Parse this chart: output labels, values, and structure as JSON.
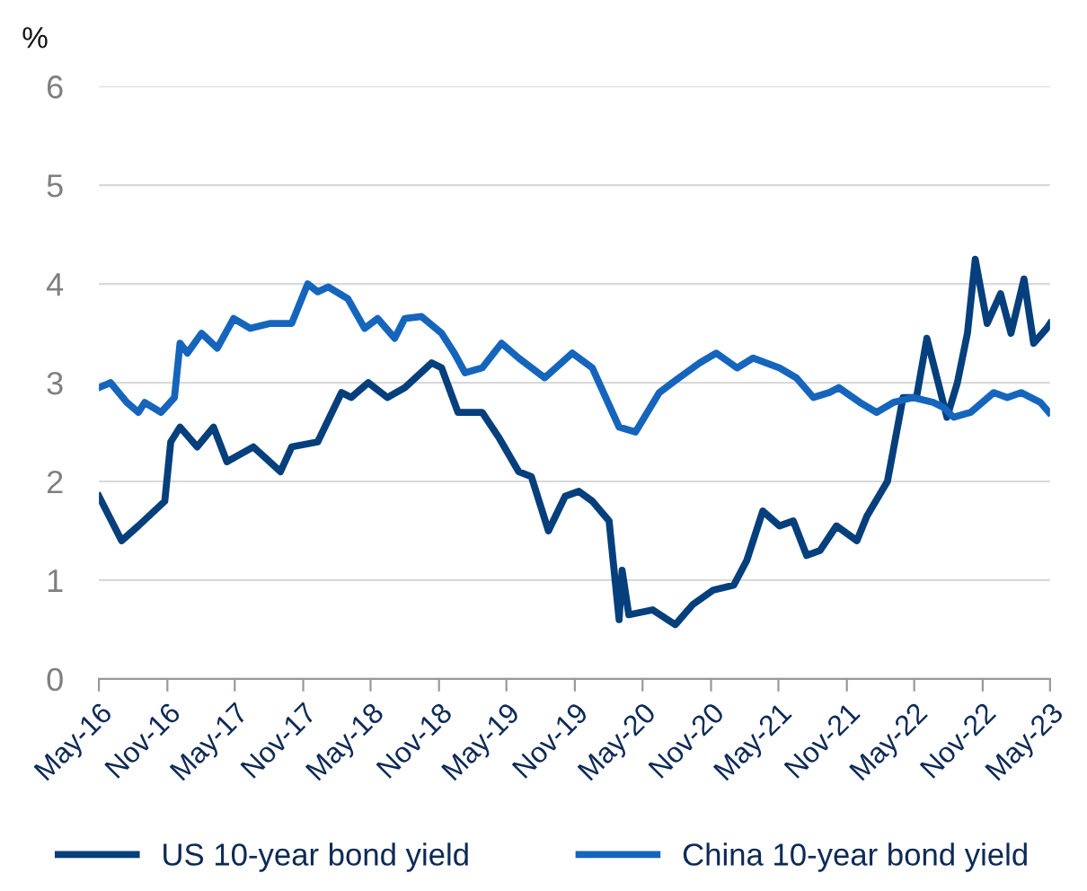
{
  "chart_data": {
    "type": "line",
    "ylabel": "%",
    "ylim": [
      0,
      6
    ],
    "yticks": [
      0,
      1,
      2,
      3,
      4,
      5,
      6
    ],
    "grid": "y",
    "legend": "bottom",
    "line_style": "solid",
    "xlim": [
      "2016-05-01",
      "2023-05-01"
    ],
    "xticks": [
      {
        "value": "2016-05-01",
        "label": "May-16"
      },
      {
        "value": "2016-11-01",
        "label": "Nov-16"
      },
      {
        "value": "2017-05-01",
        "label": "May-17"
      },
      {
        "value": "2017-11-01",
        "label": "Nov-17"
      },
      {
        "value": "2018-05-01",
        "label": "May-18"
      },
      {
        "value": "2018-11-01",
        "label": "Nov-18"
      },
      {
        "value": "2019-05-01",
        "label": "May-19"
      },
      {
        "value": "2019-11-01",
        "label": "Nov-19"
      },
      {
        "value": "2020-05-01",
        "label": "May-20"
      },
      {
        "value": "2020-11-01",
        "label": "Nov-20"
      },
      {
        "value": "2021-05-01",
        "label": "May-21"
      },
      {
        "value": "2021-11-01",
        "label": "Nov-21"
      },
      {
        "value": "2022-05-01",
        "label": "May-22"
      },
      {
        "value": "2022-11-01",
        "label": "Nov-22"
      },
      {
        "value": "2023-05-01",
        "label": "May-23"
      }
    ],
    "series": [
      {
        "name": "US 10-year bond yield",
        "color": "#053f7c",
        "x": [
          "2016-05-01",
          "2016-07-01",
          "2016-08-15",
          "2016-10-25",
          "2016-11-10",
          "2016-12-05",
          "2017-01-20",
          "2017-03-05",
          "2017-04-10",
          "2017-06-20",
          "2017-09-01",
          "2017-10-01",
          "2017-12-10",
          "2018-02-12",
          "2018-03-10",
          "2018-04-25",
          "2018-06-15",
          "2018-08-01",
          "2018-10-12",
          "2018-11-08",
          "2018-12-22",
          "2019-02-25",
          "2019-04-10",
          "2019-06-03",
          "2019-07-07",
          "2019-08-22",
          "2019-10-06",
          "2019-11-12",
          "2019-12-18",
          "2020-02-01",
          "2020-02-28",
          "2020-03-07",
          "2020-03-25",
          "2020-05-28",
          "2020-07-28",
          "2020-09-12",
          "2020-11-07",
          "2021-01-01",
          "2021-02-05",
          "2021-03-20",
          "2021-05-04",
          "2021-06-10",
          "2021-07-16",
          "2021-08-21",
          "2021-10-04",
          "2021-11-28",
          "2021-12-25",
          "2022-02-18",
          "2022-04-01",
          "2022-05-07",
          "2022-06-04",
          "2022-07-28",
          "2022-08-25",
          "2022-09-21",
          "2022-10-12",
          "2022-11-13",
          "2022-12-19",
          "2023-01-16",
          "2023-02-20",
          "2023-03-18",
          "2023-04-22",
          "2023-05-01"
        ],
        "values": [
          1.85,
          1.4,
          1.55,
          1.8,
          2.4,
          2.55,
          2.35,
          2.55,
          2.2,
          2.35,
          2.1,
          2.35,
          2.4,
          2.9,
          2.85,
          3.0,
          2.85,
          2.95,
          3.2,
          3.15,
          2.7,
          2.7,
          2.45,
          2.1,
          2.05,
          1.5,
          1.85,
          1.9,
          1.8,
          1.6,
          0.6,
          1.1,
          0.65,
          0.7,
          0.55,
          0.75,
          0.9,
          0.95,
          1.2,
          1.7,
          1.55,
          1.6,
          1.25,
          1.3,
          1.55,
          1.4,
          1.65,
          2.0,
          2.85,
          2.85,
          3.45,
          2.65,
          3.0,
          3.5,
          4.25,
          3.6,
          3.9,
          3.5,
          4.05,
          3.4,
          3.55,
          3.6
        ]
      },
      {
        "name": "China 10-year bond yield",
        "color": "#1565bd",
        "x": [
          "2016-05-01",
          "2016-06-01",
          "2016-07-15",
          "2016-08-15",
          "2016-09-01",
          "2016-10-15",
          "2016-11-20",
          "2016-12-05",
          "2016-12-25",
          "2017-02-01",
          "2017-03-15",
          "2017-04-28",
          "2017-06-12",
          "2017-08-05",
          "2017-10-01",
          "2017-11-13",
          "2017-12-10",
          "2018-01-07",
          "2018-03-01",
          "2018-04-15",
          "2018-05-20",
          "2018-07-05",
          "2018-08-01",
          "2018-09-15",
          "2018-11-08",
          "2018-12-12",
          "2019-01-10",
          "2019-02-25",
          "2019-04-18",
          "2019-06-03",
          "2019-08-12",
          "2019-10-25",
          "2019-12-18",
          "2020-02-28",
          "2020-04-12",
          "2020-06-15",
          "2020-07-20",
          "2020-10-01",
          "2020-11-15",
          "2021-01-10",
          "2021-02-22",
          "2021-05-04",
          "2021-06-18",
          "2021-08-03",
          "2021-09-15",
          "2021-10-10",
          "2021-12-06",
          "2022-01-20",
          "2022-03-06",
          "2022-04-28",
          "2022-06-21",
          "2022-07-18",
          "2022-08-15",
          "2022-09-30",
          "2022-12-01",
          "2023-01-06",
          "2023-02-12",
          "2023-04-05",
          "2023-04-28"
        ],
        "values": [
          2.95,
          3.0,
          2.8,
          2.7,
          2.8,
          2.7,
          2.85,
          3.4,
          3.3,
          3.5,
          3.35,
          3.65,
          3.55,
          3.6,
          3.6,
          4.0,
          3.92,
          3.97,
          3.85,
          3.55,
          3.65,
          3.45,
          3.65,
          3.67,
          3.5,
          3.3,
          3.1,
          3.15,
          3.4,
          3.25,
          3.05,
          3.3,
          3.15,
          2.55,
          2.5,
          2.9,
          3.0,
          3.2,
          3.3,
          3.15,
          3.25,
          3.15,
          3.05,
          2.85,
          2.9,
          2.95,
          2.8,
          2.7,
          2.8,
          2.85,
          2.8,
          2.75,
          2.65,
          2.7,
          2.9,
          2.85,
          2.9,
          2.8,
          2.7
        ]
      }
    ]
  }
}
